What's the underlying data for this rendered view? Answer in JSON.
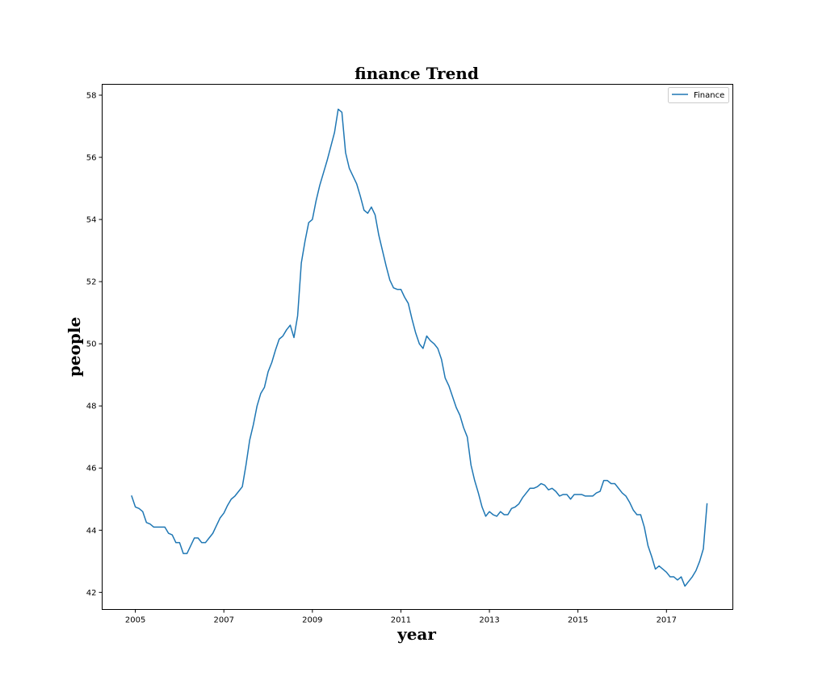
{
  "chart_data": {
    "type": "line",
    "title": "finance Trend",
    "xlabel": "year",
    "ylabel": "people",
    "xlim": [
      "2004-04",
      "2018-07"
    ],
    "ylim": [
      41.45,
      58.35
    ],
    "x_ticks": [
      "2005",
      "2007",
      "2009",
      "2011",
      "2013",
      "2015",
      "2017"
    ],
    "y_ticks": [
      "42",
      "44",
      "46",
      "48",
      "50",
      "52",
      "54",
      "56",
      "58"
    ],
    "grid": false,
    "legend": "top-right",
    "colors": {
      "series": "#1f77b4",
      "axes": "#000000",
      "background": "#ffffff"
    },
    "series": [
      {
        "name": "Finance",
        "points": [
          [
            "2004-12",
            45.1
          ],
          [
            "2005-01",
            44.75
          ],
          [
            "2005-02",
            44.7
          ],
          [
            "2005-03",
            44.6
          ],
          [
            "2005-04",
            44.25
          ],
          [
            "2005-05",
            44.2
          ],
          [
            "2005-06",
            44.1
          ],
          [
            "2005-07",
            44.1
          ],
          [
            "2005-08",
            44.1
          ],
          [
            "2005-09",
            44.1
          ],
          [
            "2005-10",
            43.9
          ],
          [
            "2005-11",
            43.85
          ],
          [
            "2005-12",
            43.6
          ],
          [
            "2006-01",
            43.6
          ],
          [
            "2006-02",
            43.25
          ],
          [
            "2006-03",
            43.25
          ],
          [
            "2006-04",
            43.5
          ],
          [
            "2006-05",
            43.75
          ],
          [
            "2006-06",
            43.75
          ],
          [
            "2006-07",
            43.6
          ],
          [
            "2006-08",
            43.6
          ],
          [
            "2006-09",
            43.75
          ],
          [
            "2006-10",
            43.9
          ],
          [
            "2006-11",
            44.15
          ],
          [
            "2006-12",
            44.4
          ],
          [
            "2007-01",
            44.55
          ],
          [
            "2007-02",
            44.8
          ],
          [
            "2007-03",
            45.0
          ],
          [
            "2007-04",
            45.1
          ],
          [
            "2007-05",
            45.25
          ],
          [
            "2007-06",
            45.4
          ],
          [
            "2007-07",
            46.1
          ],
          [
            "2007-08",
            46.9
          ],
          [
            "2007-09",
            47.4
          ],
          [
            "2007-10",
            48.0
          ],
          [
            "2007-11",
            48.4
          ],
          [
            "2007-12",
            48.6
          ],
          [
            "2008-01",
            49.1
          ],
          [
            "2008-02",
            49.4
          ],
          [
            "2008-03",
            49.8
          ],
          [
            "2008-04",
            50.15
          ],
          [
            "2008-05",
            50.25
          ],
          [
            "2008-06",
            50.45
          ],
          [
            "2008-07",
            50.6
          ],
          [
            "2008-08",
            50.2
          ],
          [
            "2008-09",
            50.9
          ],
          [
            "2008-10",
            52.6
          ],
          [
            "2008-11",
            53.3
          ],
          [
            "2008-12",
            53.9
          ],
          [
            "2009-01",
            54.0
          ],
          [
            "2009-02",
            54.6
          ],
          [
            "2009-03",
            55.1
          ],
          [
            "2009-04",
            55.5
          ],
          [
            "2009-05",
            55.9
          ],
          [
            "2009-06",
            56.35
          ],
          [
            "2009-07",
            56.8
          ],
          [
            "2009-08",
            57.55
          ],
          [
            "2009-09",
            57.45
          ],
          [
            "2009-10",
            56.15
          ],
          [
            "2009-11",
            55.65
          ],
          [
            "2009-12",
            55.4
          ],
          [
            "2010-01",
            55.15
          ],
          [
            "2010-02",
            54.75
          ],
          [
            "2010-03",
            54.3
          ],
          [
            "2010-04",
            54.2
          ],
          [
            "2010-05",
            54.4
          ],
          [
            "2010-06",
            54.15
          ],
          [
            "2010-07",
            53.5
          ],
          [
            "2010-08",
            53.0
          ],
          [
            "2010-09",
            52.5
          ],
          [
            "2010-10",
            52.05
          ],
          [
            "2010-11",
            51.8
          ],
          [
            "2010-12",
            51.75
          ],
          [
            "2011-01",
            51.75
          ],
          [
            "2011-02",
            51.5
          ],
          [
            "2011-03",
            51.3
          ],
          [
            "2011-04",
            50.8
          ],
          [
            "2011-05",
            50.35
          ],
          [
            "2011-06",
            50.0
          ],
          [
            "2011-07",
            49.85
          ],
          [
            "2011-08",
            50.25
          ],
          [
            "2011-09",
            50.1
          ],
          [
            "2011-10",
            50.0
          ],
          [
            "2011-11",
            49.85
          ],
          [
            "2011-12",
            49.5
          ],
          [
            "2012-01",
            48.9
          ],
          [
            "2012-02",
            48.65
          ],
          [
            "2012-03",
            48.3
          ],
          [
            "2012-04",
            47.95
          ],
          [
            "2012-05",
            47.7
          ],
          [
            "2012-06",
            47.3
          ],
          [
            "2012-07",
            47.0
          ],
          [
            "2012-08",
            46.1
          ],
          [
            "2012-09",
            45.6
          ],
          [
            "2012-10",
            45.2
          ],
          [
            "2012-11",
            44.75
          ],
          [
            "2012-12",
            44.45
          ],
          [
            "2013-01",
            44.6
          ],
          [
            "2013-02",
            44.5
          ],
          [
            "2013-03",
            44.45
          ],
          [
            "2013-04",
            44.6
          ],
          [
            "2013-05",
            44.5
          ],
          [
            "2013-06",
            44.5
          ],
          [
            "2013-07",
            44.7
          ],
          [
            "2013-08",
            44.75
          ],
          [
            "2013-09",
            44.85
          ],
          [
            "2013-10",
            45.05
          ],
          [
            "2013-11",
            45.2
          ],
          [
            "2013-12",
            45.35
          ],
          [
            "2014-01",
            45.35
          ],
          [
            "2014-02",
            45.4
          ],
          [
            "2014-03",
            45.5
          ],
          [
            "2014-04",
            45.45
          ],
          [
            "2014-05",
            45.3
          ],
          [
            "2014-06",
            45.35
          ],
          [
            "2014-07",
            45.25
          ],
          [
            "2014-08",
            45.1
          ],
          [
            "2014-09",
            45.15
          ],
          [
            "2014-10",
            45.15
          ],
          [
            "2014-11",
            45.0
          ],
          [
            "2014-12",
            45.15
          ],
          [
            "2015-01",
            45.15
          ],
          [
            "2015-02",
            45.15
          ],
          [
            "2015-03",
            45.1
          ],
          [
            "2015-04",
            45.1
          ],
          [
            "2015-05",
            45.1
          ],
          [
            "2015-06",
            45.2
          ],
          [
            "2015-07",
            45.25
          ],
          [
            "2015-08",
            45.6
          ],
          [
            "2015-09",
            45.6
          ],
          [
            "2015-10",
            45.5
          ],
          [
            "2015-11",
            45.5
          ],
          [
            "2015-12",
            45.35
          ],
          [
            "2016-01",
            45.2
          ],
          [
            "2016-02",
            45.1
          ],
          [
            "2016-03",
            44.9
          ],
          [
            "2016-04",
            44.65
          ],
          [
            "2016-05",
            44.5
          ],
          [
            "2016-06",
            44.5
          ],
          [
            "2016-07",
            44.1
          ],
          [
            "2016-08",
            43.5
          ],
          [
            "2016-09",
            43.15
          ],
          [
            "2016-10",
            42.75
          ],
          [
            "2016-11",
            42.85
          ],
          [
            "2016-12",
            42.75
          ],
          [
            "2017-01",
            42.65
          ],
          [
            "2017-02",
            42.5
          ],
          [
            "2017-03",
            42.5
          ],
          [
            "2017-04",
            42.4
          ],
          [
            "2017-05",
            42.5
          ],
          [
            "2017-06",
            42.2
          ],
          [
            "2017-07",
            42.35
          ],
          [
            "2017-08",
            42.5
          ],
          [
            "2017-09",
            42.7
          ],
          [
            "2017-10",
            43.0
          ],
          [
            "2017-11",
            43.4
          ],
          [
            "2017-12",
            44.85
          ]
        ]
      }
    ]
  }
}
